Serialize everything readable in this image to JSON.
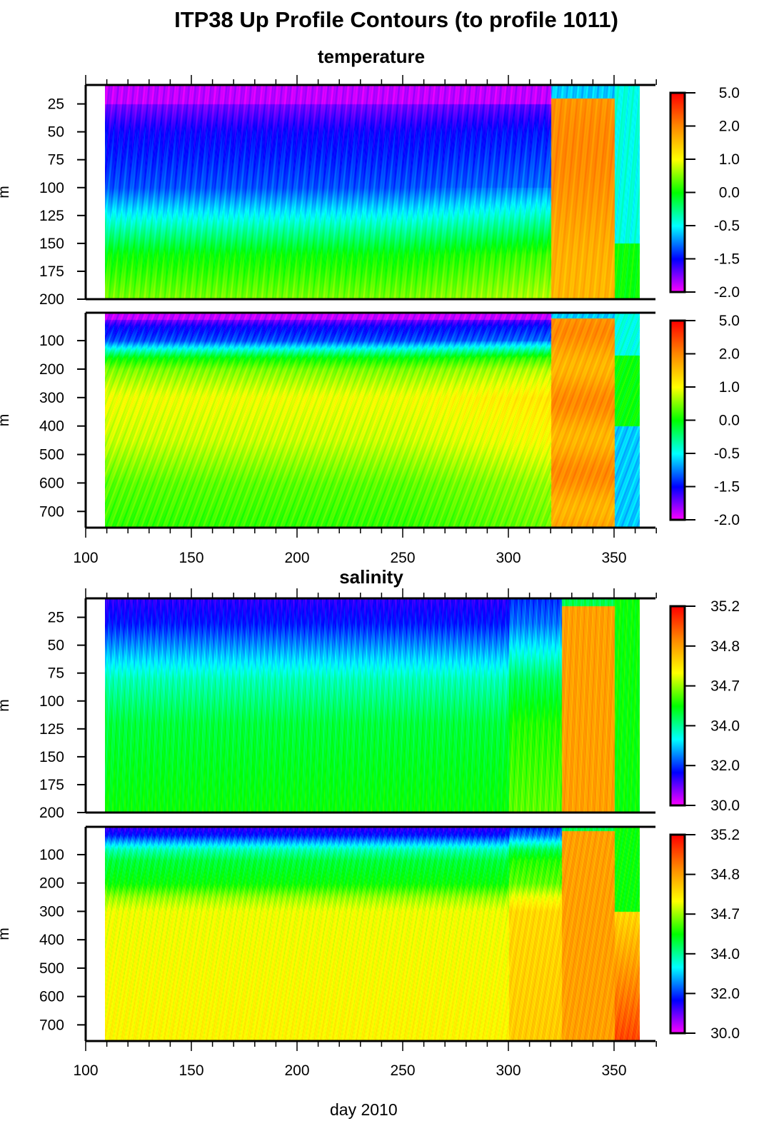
{
  "title": "ITP38 Up Profile Contours (to profile 1011)",
  "xlabel": "day 2010",
  "colormap": [
    "#ff00ff",
    "#0000ff",
    "#00ffff",
    "#00ff00",
    "#ffff00",
    "#ff8800",
    "#ff0000"
  ],
  "contour_color": "#000000",
  "chart_data": [
    {
      "type": "heatmap",
      "section": "temperature",
      "variable": "temperature",
      "ylabel": "m",
      "xlim": [
        100,
        370
      ],
      "ylim": [
        200,
        8
      ],
      "xticks": [
        100,
        150,
        200,
        250,
        300,
        350
      ],
      "yticks": [
        25,
        50,
        75,
        100,
        125,
        150,
        175,
        200
      ],
      "colorbar": [
        "5.0",
        "2.0",
        "1.0",
        "0.0",
        "-0.5",
        "-1.5",
        "-2.0"
      ],
      "data_days": [
        109,
        362
      ]
    },
    {
      "type": "heatmap",
      "section": "temperature",
      "variable": "temperature",
      "ylabel": "m",
      "xlim": [
        100,
        370
      ],
      "ylim": [
        757,
        2
      ],
      "xticks": [
        100,
        150,
        200,
        250,
        300,
        350
      ],
      "yticks": [
        100,
        200,
        300,
        400,
        500,
        600,
        700
      ],
      "colorbar": [
        "5.0",
        "2.0",
        "1.0",
        "0.0",
        "-0.5",
        "-1.5",
        "-2.0"
      ],
      "data_days": [
        109,
        362
      ]
    },
    {
      "type": "heatmap",
      "section": "salinity",
      "variable": "salinity",
      "ylabel": "m",
      "xlim": [
        100,
        370
      ],
      "ylim": [
        200,
        8
      ],
      "xticks": [
        100,
        150,
        200,
        250,
        300,
        350
      ],
      "yticks": [
        25,
        50,
        75,
        100,
        125,
        150,
        175,
        200
      ],
      "colorbar": [
        "35.2",
        "34.8",
        "34.7",
        "34.0",
        "32.0",
        "30.0"
      ],
      "data_days": [
        109,
        362
      ]
    },
    {
      "type": "heatmap",
      "section": "salinity",
      "variable": "salinity",
      "ylabel": "m",
      "xlim": [
        100,
        370
      ],
      "ylim": [
        757,
        2
      ],
      "xticks": [
        100,
        150,
        200,
        250,
        300,
        350
      ],
      "yticks": [
        100,
        200,
        300,
        400,
        500,
        600,
        700
      ],
      "colorbar": [
        "35.2",
        "34.8",
        "34.7",
        "34.0",
        "32.0",
        "30.0"
      ],
      "data_days": [
        109,
        362
      ]
    }
  ]
}
